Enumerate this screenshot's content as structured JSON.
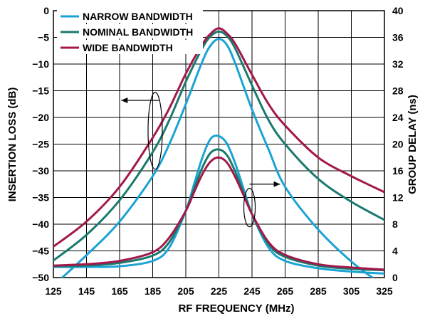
{
  "chart_data": {
    "type": "line",
    "xlabel": "RF FREQUENCY (MHz)",
    "ylabel_left": "INSERTION LOSS (dB)",
    "ylabel_right": "GROUP DELAY (ns)",
    "xlim": [
      125,
      325
    ],
    "ylim_left": [
      -50,
      0
    ],
    "ylim_right": [
      0,
      40
    ],
    "x_ticks": [
      125,
      145,
      165,
      185,
      205,
      225,
      245,
      265,
      285,
      305,
      325
    ],
    "y_ticks_left": [
      0,
      -5,
      -10,
      -15,
      -20,
      -25,
      -30,
      -35,
      -40,
      -45,
      -50
    ],
    "y_ticks_right": [
      40,
      36,
      32,
      28,
      24,
      20,
      16,
      12,
      8,
      4,
      0
    ],
    "grid": true,
    "legend_position": "top-left",
    "series": [
      {
        "name": "NARROW BANDWIDTH",
        "color": "#1AA3D4",
        "axis": "left",
        "x": [
          125,
          145,
          165,
          185,
          195,
          205,
          215,
          220,
          225,
          230,
          235,
          245,
          255,
          265,
          285,
          305,
          320,
          325
        ],
        "values": [
          -51.5,
          -45.8,
          -39.5,
          -31.0,
          -25.0,
          -17.5,
          -9.5,
          -6.5,
          -5.3,
          -6.5,
          -10.0,
          -18.5,
          -26.0,
          -33.0,
          -41.0,
          -47.0,
          -50.5,
          -51.5
        ]
      },
      {
        "name": "NOMINAL BANDWIDTH",
        "color": "#1A7A6E",
        "axis": "left",
        "x": [
          125,
          145,
          165,
          185,
          195,
          205,
          215,
          220,
          225,
          230,
          235,
          245,
          255,
          265,
          285,
          305,
          325
        ],
        "values": [
          -46.8,
          -42.0,
          -35.5,
          -26.5,
          -20.5,
          -13.3,
          -7.0,
          -4.8,
          -3.9,
          -4.8,
          -7.2,
          -14.0,
          -20.5,
          -25.0,
          -31.5,
          -35.8,
          -39.2
        ]
      },
      {
        "name": "WIDE BANDWIDTH",
        "color": "#A3184B",
        "axis": "left",
        "x": [
          125,
          145,
          165,
          185,
          195,
          205,
          215,
          220,
          225,
          230,
          235,
          245,
          255,
          265,
          285,
          305,
          325
        ],
        "values": [
          -44.2,
          -39.5,
          -33.0,
          -23.8,
          -18.3,
          -11.8,
          -6.3,
          -4.3,
          -3.3,
          -4.3,
          -6.3,
          -12.0,
          -17.5,
          -21.5,
          -27.5,
          -31.0,
          -34.0
        ]
      },
      {
        "name": "NARROW BANDWIDTH",
        "color": "#1AA3D4",
        "axis": "right",
        "x": [
          125,
          145,
          165,
          185,
          195,
          205,
          210,
          215,
          220,
          225,
          230,
          235,
          240,
          245,
          255,
          265,
          285,
          305,
          325
        ],
        "values": [
          1.6,
          1.6,
          1.7,
          2.5,
          4.5,
          10.0,
          14.0,
          18.0,
          20.8,
          21.2,
          20.0,
          17.0,
          13.2,
          9.5,
          4.5,
          2.5,
          1.4,
          0.9,
          0.6
        ]
      },
      {
        "name": "NOMINAL BANDWIDTH",
        "color": "#1A7A6E",
        "axis": "right",
        "x": [
          125,
          145,
          165,
          185,
          195,
          205,
          210,
          215,
          220,
          225,
          230,
          235,
          240,
          245,
          255,
          265,
          285,
          305,
          325
        ],
        "values": [
          1.7,
          1.8,
          2.2,
          3.3,
          5.3,
          10.0,
          13.3,
          16.5,
          18.7,
          19.2,
          18.3,
          15.8,
          12.6,
          9.5,
          5.0,
          3.1,
          1.8,
          1.3,
          1.1
        ]
      },
      {
        "name": "WIDE BANDWIDTH",
        "color": "#A3184B",
        "axis": "right",
        "x": [
          125,
          145,
          165,
          185,
          195,
          205,
          210,
          215,
          220,
          225,
          230,
          235,
          240,
          245,
          255,
          265,
          285,
          305,
          325
        ],
        "values": [
          1.8,
          2.0,
          2.5,
          3.8,
          6.0,
          10.0,
          12.8,
          15.5,
          17.4,
          18.0,
          17.2,
          15.0,
          12.3,
          9.5,
          5.3,
          3.4,
          2.0,
          1.5,
          1.2
        ]
      }
    ]
  }
}
